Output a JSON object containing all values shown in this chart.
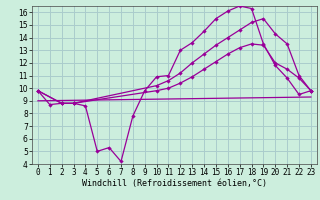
{
  "xlabel": "Windchill (Refroidissement éolien,°C)",
  "background_color": "#cceedd",
  "grid_color": "#aacccc",
  "line_color": "#990099",
  "xlim": [
    -0.5,
    23.5
  ],
  "ylim": [
    4,
    16.5
  ],
  "xticks": [
    0,
    1,
    2,
    3,
    4,
    5,
    6,
    7,
    8,
    9,
    10,
    11,
    12,
    13,
    14,
    15,
    16,
    17,
    18,
    19,
    20,
    21,
    22,
    23
  ],
  "yticks": [
    4,
    5,
    6,
    7,
    8,
    9,
    10,
    11,
    12,
    13,
    14,
    15,
    16
  ],
  "line1_x": [
    0,
    1,
    2,
    3,
    4,
    5,
    6,
    7,
    8,
    9,
    10,
    11,
    12,
    13,
    14,
    15,
    16,
    17,
    18,
    19,
    20,
    21,
    22,
    23
  ],
  "line1_y": [
    9.8,
    8.7,
    8.8,
    8.8,
    8.6,
    5.0,
    5.3,
    4.2,
    7.8,
    9.8,
    10.9,
    11.0,
    13.0,
    13.6,
    14.5,
    15.5,
    16.1,
    16.5,
    16.3,
    13.5,
    11.8,
    10.8,
    9.5,
    9.8
  ],
  "line2_x": [
    0,
    2,
    3,
    10,
    11,
    12,
    13,
    14,
    15,
    16,
    17,
    18,
    19,
    20,
    21,
    22,
    23
  ],
  "line2_y": [
    9.8,
    8.8,
    8.8,
    10.2,
    10.6,
    11.2,
    12.0,
    12.7,
    13.4,
    14.0,
    14.6,
    15.2,
    15.5,
    14.3,
    13.5,
    11.0,
    9.8
  ],
  "line3_x": [
    0,
    2,
    3,
    10,
    11,
    12,
    13,
    14,
    15,
    16,
    17,
    18,
    19,
    20,
    21,
    22,
    23
  ],
  "line3_y": [
    9.8,
    8.8,
    8.8,
    9.8,
    10.0,
    10.4,
    10.9,
    11.5,
    12.1,
    12.7,
    13.2,
    13.5,
    13.4,
    12.0,
    11.5,
    10.8,
    9.8
  ],
  "line4_x": [
    0,
    23
  ],
  "line4_y": [
    9.0,
    9.3
  ]
}
